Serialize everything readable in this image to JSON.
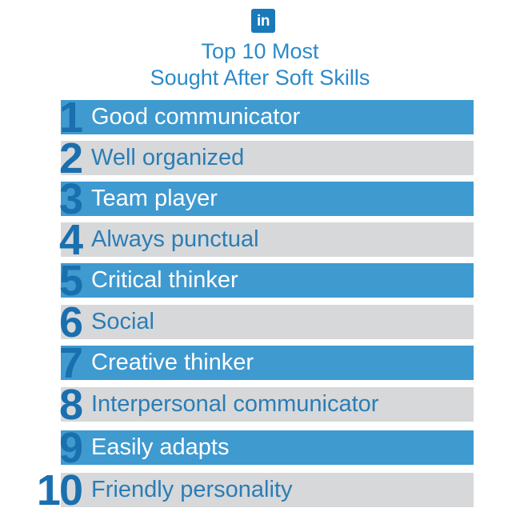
{
  "logo": {
    "text": "in"
  },
  "title": {
    "line1": "Top 10 Most",
    "line2": "Sought After Soft Skills"
  },
  "skills": [
    {
      "rank": "1",
      "label": "Good communicator"
    },
    {
      "rank": "2",
      "label": "Well organized"
    },
    {
      "rank": "3",
      "label": "Team player"
    },
    {
      "rank": "4",
      "label": "Always punctual"
    },
    {
      "rank": "5",
      "label": "Critical thinker"
    },
    {
      "rank": "6",
      "label": "Social"
    },
    {
      "rank": "7",
      "label": "Creative thinker"
    },
    {
      "rank": "8",
      "label": "Interpersonal communicator"
    },
    {
      "rank": "9",
      "label": "Easily adapts"
    },
    {
      "rank": "10",
      "label": "Friendly personality"
    }
  ],
  "colors": {
    "blue_bar": "#3f9ad0",
    "gray_bar": "#d7d8da",
    "number": "#1a6fae",
    "title": "#2c8ac8",
    "logo": "#1a79b8"
  }
}
